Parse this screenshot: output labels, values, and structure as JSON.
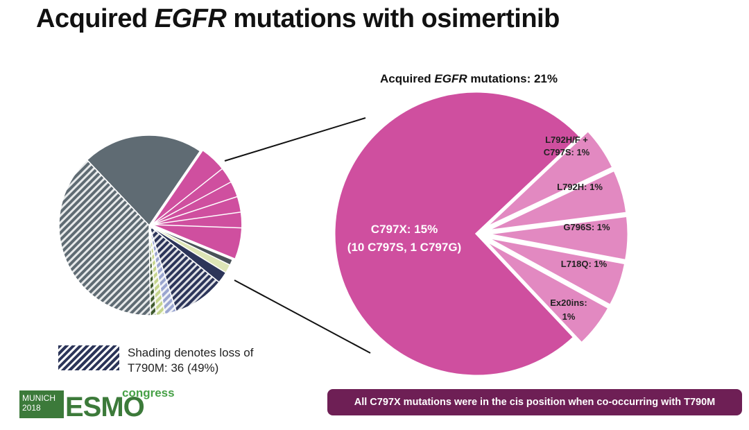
{
  "slide": {
    "title_pre": "Acquired ",
    "title_gene": "EGFR",
    "title_post": " mutations with osimertinib",
    "footnote": "All C797X mutations were in the cis position when co-occurring with T790M"
  },
  "legend": {
    "line1": "Shading denotes loss of",
    "line2": "T790M: 36 (49%)"
  },
  "logo": {
    "city": "MUNICH",
    "year": "2018",
    "wordmark": "ESMO",
    "tagline": "congress"
  },
  "chart_data": [
    {
      "type": "pie",
      "title": "",
      "note": "Overview pie; the pink segment (21%) is exploded into the detail pie",
      "slices": [
        {
          "name": "Grey",
          "value": 21,
          "color": "#5f6b73"
        },
        {
          "name": "Acquired EGFR mutations",
          "value": 21,
          "color": "#cf4f9f",
          "exploded": true
        },
        {
          "name": "Dark grey small",
          "value": 1,
          "color": "#4a5258"
        },
        {
          "name": "Light green",
          "value": 1.5,
          "color": "#dde5b6"
        },
        {
          "name": "Navy",
          "value": 2,
          "color": "#2c3559"
        },
        {
          "name": "Navy hatched",
          "value": 9,
          "color": "#2c3559",
          "hatched": true
        },
        {
          "name": "Light blue hatched",
          "value": 2,
          "color": "#9aa5cf",
          "hatched": true
        },
        {
          "name": "Light green hatched",
          "value": 1.5,
          "color": "#c4d48c",
          "hatched": true
        },
        {
          "name": "Dark green hatched",
          "value": 1,
          "color": "#3f5a2c",
          "hatched": true
        },
        {
          "name": "Grey hatched",
          "value": 37,
          "color": "#5f6b73",
          "hatched": true
        }
      ]
    },
    {
      "type": "pie",
      "title_pre": "Acquired ",
      "title_gene": "EGFR",
      "title_post": " mutations: 21%",
      "slices": [
        {
          "name": "C797X",
          "label_line1": "C797X: 15%",
          "label_line2": "(10 C797S, 1 C797G)",
          "value": 15,
          "color": "#cf4f9f"
        },
        {
          "name": "L792H/F + C797S",
          "label_line1": "L792H/F +",
          "label_line2": "C797S: 1%",
          "value": 1,
          "color": "#e289c1"
        },
        {
          "name": "L792H",
          "label_line1": "L792H: 1%",
          "value": 1,
          "color": "#e289c1"
        },
        {
          "name": "G796S",
          "label_line1": "G796S: 1%",
          "value": 1,
          "color": "#e289c1"
        },
        {
          "name": "L718Q",
          "label_line1": "L718Q: 1%",
          "value": 1,
          "color": "#e289c1"
        },
        {
          "name": "Ex20ins",
          "label_line1": "Ex20ins:",
          "label_line2": "1%",
          "value": 1,
          "color": "#e289c1"
        }
      ]
    }
  ]
}
